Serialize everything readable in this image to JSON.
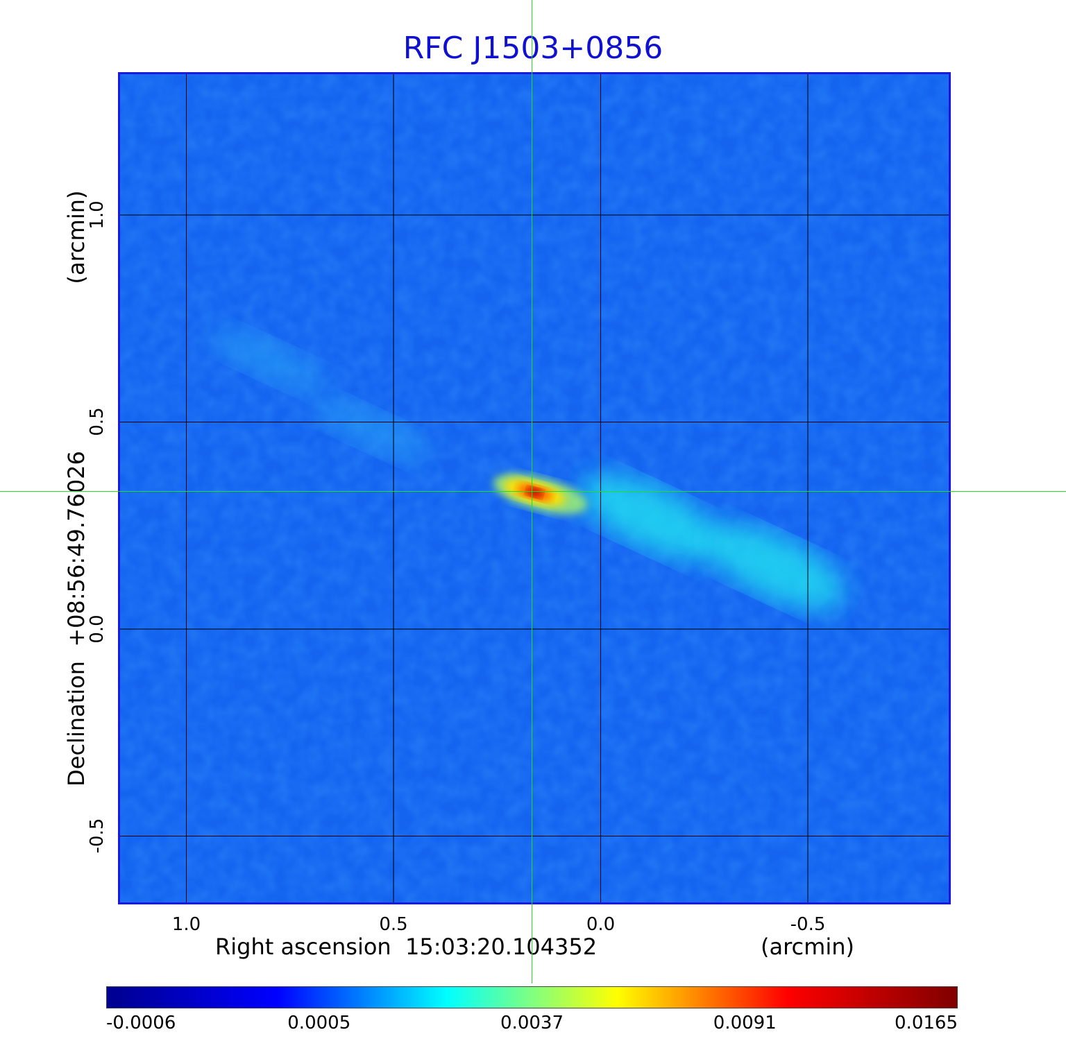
{
  "chart_data": {
    "type": "heatmap",
    "title": "RFC J1503+0856",
    "xlabel": "Right ascension  15:03:20.104352",
    "xunit": "(arcmin)",
    "ylabel": "Declination  +08:56:49.76026",
    "yunit": "(arcmin)",
    "x_ticks": [
      "1.0",
      "0.5",
      "0.0",
      "-0.5"
    ],
    "y_ticks": [
      "1.0",
      "0.5",
      "0.0",
      "-0.5"
    ],
    "x_tick_values": [
      1.0,
      0.5,
      0.0,
      -0.5
    ],
    "y_tick_values": [
      1.0,
      0.5,
      0.0,
      -0.5
    ],
    "xlim": [
      1.16,
      -0.84
    ],
    "ylim": [
      -0.66,
      1.34
    ],
    "grid": true,
    "colorbar_ticks": [
      "-0.0006",
      "0.0005",
      "0.0037",
      "0.0091",
      "0.0165"
    ],
    "colormap": [
      "#00008f",
      "#0000ff",
      "#00ffff",
      "#ffff00",
      "#ff0000",
      "#800000"
    ],
    "crosshair": {
      "x": 0.165,
      "y": 0.335
    },
    "peak": {
      "x": 0.165,
      "y": 0.335,
      "value": 0.0165
    },
    "extended_emission": [
      {
        "x": -0.12,
        "y": 0.27,
        "value": 0.0028
      },
      {
        "x": -0.42,
        "y": 0.15,
        "value": 0.0024
      },
      {
        "x": 0.55,
        "y": 0.48,
        "value": 0.0011
      },
      {
        "x": 0.8,
        "y": 0.65,
        "value": 0.0009
      }
    ]
  }
}
